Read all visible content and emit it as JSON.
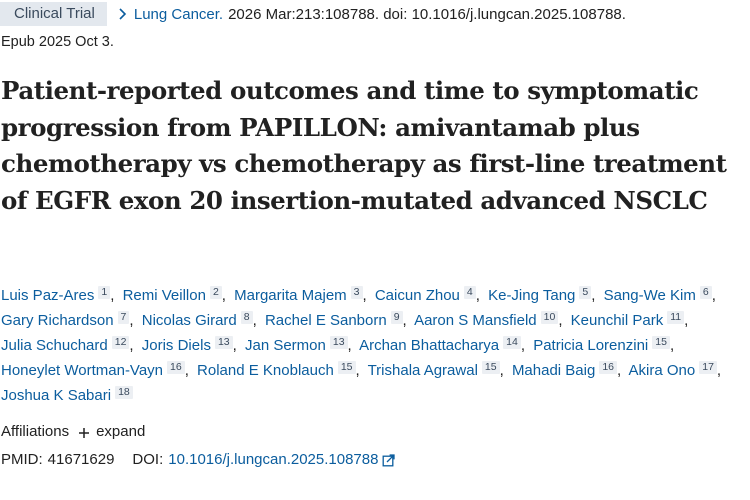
{
  "citation": {
    "publication_type": "Clinical Trial",
    "journal": "Lung Cancer.",
    "details": "2026 Mar:213:108788. doi: 10.1016/j.lungcan.2025.108788.",
    "epub": "Epub 2025 Oct 3."
  },
  "title": "Patient-reported outcomes and time to symptomatic progression from PAPILLON: amivantamab plus chemotherapy vs chemotherapy as first-line treatment of EGFR exon 20 insertion-mutated advanced NSCLC",
  "authors": [
    {
      "name": "Luis Paz-Ares",
      "aff": "1"
    },
    {
      "name": "Remi Veillon",
      "aff": "2"
    },
    {
      "name": "Margarita Majem",
      "aff": "3"
    },
    {
      "name": "Caicun Zhou",
      "aff": "4"
    },
    {
      "name": "Ke-Jing Tang",
      "aff": "5"
    },
    {
      "name": "Sang-We Kim",
      "aff": "6"
    },
    {
      "name": "Gary Richardson",
      "aff": "7"
    },
    {
      "name": "Nicolas Girard",
      "aff": "8"
    },
    {
      "name": "Rachel E Sanborn",
      "aff": "9"
    },
    {
      "name": "Aaron S Mansfield",
      "aff": "10"
    },
    {
      "name": "Keunchil Park",
      "aff": "11"
    },
    {
      "name": "Julia Schuchard",
      "aff": "12"
    },
    {
      "name": "Joris Diels",
      "aff": "13"
    },
    {
      "name": "Jan Sermon",
      "aff": "13"
    },
    {
      "name": "Archan Bhattacharya",
      "aff": "14"
    },
    {
      "name": "Patricia Lorenzini",
      "aff": "15"
    },
    {
      "name": "Honeylet Wortman-Vayn",
      "aff": "16"
    },
    {
      "name": "Roland E Knoblauch",
      "aff": "15"
    },
    {
      "name": "Trishala Agrawal",
      "aff": "15"
    },
    {
      "name": "Mahadi Baig",
      "aff": "16"
    },
    {
      "name": "Akira Ono",
      "aff": "17"
    },
    {
      "name": "Joshua K Sabari",
      "aff": "18"
    }
  ],
  "affiliations": {
    "label": "Affiliations",
    "expand_label": "expand"
  },
  "identifiers": {
    "pmid_label": "PMID:",
    "pmid": "41671629",
    "doi_label": "DOI:",
    "doi": "10.1016/j.lungcan.2025.108788"
  },
  "colors": {
    "link": "#0b5d9e",
    "text": "#212121",
    "badge_bg": "#e3e8ee"
  },
  "icons": {
    "breadcrumb": "chevron-right-icon",
    "expand": "plus-icon",
    "external": "external-link-icon"
  }
}
